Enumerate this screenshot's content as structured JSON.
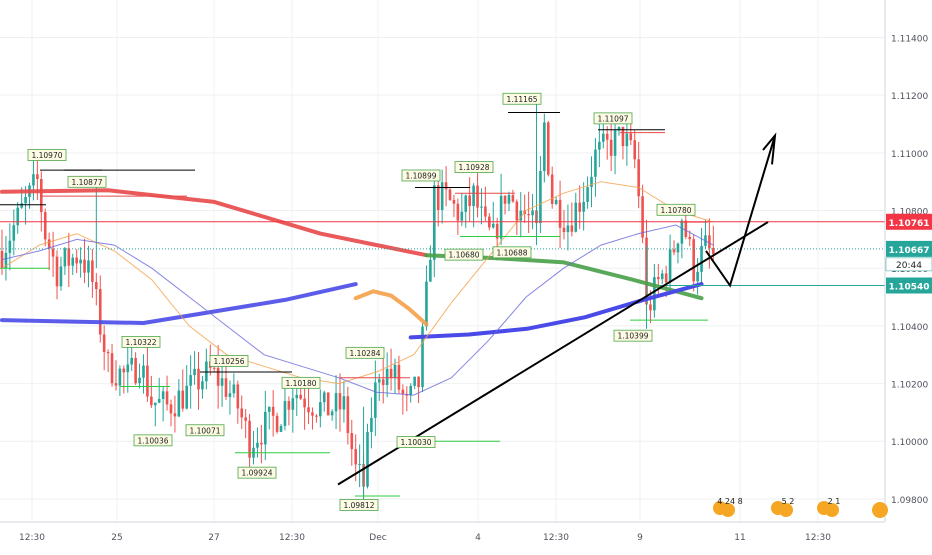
{
  "chart_data": {
    "type": "line",
    "ylim": [
      1.0972,
      1.1153
    ],
    "x_tick_labels": [
      "12:30",
      "25",
      "27",
      "12:30",
      "Dec",
      "4",
      "12:30",
      "9",
      "11",
      "12:30"
    ],
    "y_tick_labels": [
      "1.11400",
      "1.11200",
      "1.11000",
      "1.10800",
      "1.10600",
      "1.10400",
      "1.10200",
      "1.10000",
      "1.09800"
    ],
    "price_tags": [
      {
        "name": "resistance",
        "value": "1.10761",
        "color": "#f23645"
      },
      {
        "name": "last",
        "value": "1.10667",
        "color": "#26a69a"
      },
      {
        "name": "countdown",
        "value": "20:44",
        "color": "#ffffff"
      },
      {
        "name": "support",
        "value": "1.10540",
        "color": "#26a69a"
      }
    ],
    "pivot_labels": [
      {
        "text": "1.10970",
        "value": 1.1097
      },
      {
        "text": "1.10877",
        "value": 1.10877
      },
      {
        "text": "1.10322",
        "value": 1.10322
      },
      {
        "text": "1.10256",
        "value": 1.10256
      },
      {
        "text": "1.10180",
        "value": 1.1018
      },
      {
        "text": "1.10284",
        "value": 1.10284
      },
      {
        "text": "1.10899",
        "value": 1.10899
      },
      {
        "text": "1.10928",
        "value": 1.10928
      },
      {
        "text": "1.11165",
        "value": 1.11165
      },
      {
        "text": "1.11097",
        "value": 1.11097
      },
      {
        "text": "1.10780",
        "value": 1.1078
      },
      {
        "text": "1.10036",
        "value": 1.10036
      },
      {
        "text": "1.10071",
        "value": 1.10071
      },
      {
        "text": "1.09924",
        "value": 1.09924
      },
      {
        "text": "1.09812",
        "value": 1.09812
      },
      {
        "text": "1.10030",
        "value": 1.1003
      },
      {
        "text": "1.10680",
        "value": 1.1068
      },
      {
        "text": "1.10688",
        "value": 1.10688
      },
      {
        "text": "1.10399",
        "value": 1.10399
      }
    ],
    "series": [
      {
        "color": "#4a4ae8",
        "values": [
          1.1042,
          1.10415,
          1.1041,
          1.1045,
          1.1049,
          1.10545
        ]
      },
      {
        "color": "#e84848",
        "values": [
          1.10865,
          1.1087,
          1.1083,
          1.1072,
          1.10645
        ]
      },
      {
        "color": "#48a048",
        "values": [
          1.10645,
          1.10635,
          1.1062,
          1.1056,
          1.10496
        ]
      },
      {
        "color": "#f5a048",
        "values": [
          1.10496,
          1.1052,
          1.10505,
          1.1046,
          1.10406
        ]
      }
    ],
    "calendar_events": [
      "4 24 8",
      "5 2",
      "2 1"
    ]
  }
}
